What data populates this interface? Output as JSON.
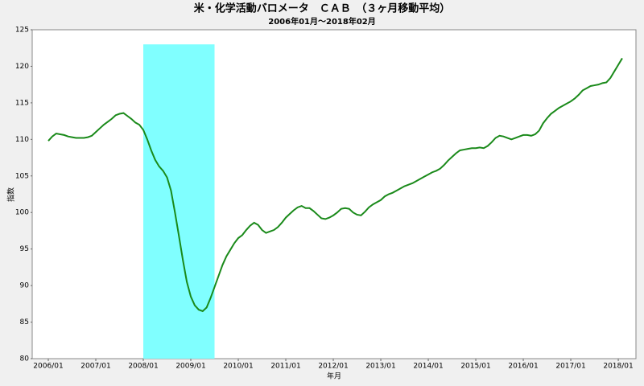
{
  "chart_data": {
    "type": "line",
    "title": "米・化学活動バロメータ　ＣＡＢ　（３ヶ月移動平均）",
    "subtitle": "2006年01月～2018年02月",
    "x_label": "年月",
    "y_label": "指数",
    "categories": [
      "2006/01",
      null,
      null,
      null,
      null,
      null,
      null,
      null,
      null,
      null,
      null,
      null,
      "2007/01",
      null,
      null,
      null,
      null,
      null,
      null,
      null,
      null,
      null,
      null,
      null,
      "2008/01",
      null,
      null,
      null,
      null,
      null,
      null,
      null,
      null,
      null,
      null,
      null,
      "2009/01",
      null,
      null,
      null,
      null,
      null,
      null,
      null,
      null,
      null,
      null,
      null,
      "2010/01",
      null,
      null,
      null,
      null,
      null,
      null,
      null,
      null,
      null,
      null,
      null,
      "2011/01",
      null,
      null,
      null,
      null,
      null,
      null,
      null,
      null,
      null,
      null,
      null,
      "2012/01",
      null,
      null,
      null,
      null,
      null,
      null,
      null,
      null,
      null,
      null,
      null,
      "2013/01",
      null,
      null,
      null,
      null,
      null,
      null,
      null,
      null,
      null,
      null,
      null,
      "2014/01",
      null,
      null,
      null,
      null,
      null,
      null,
      null,
      null,
      null,
      null,
      null,
      "2015/01",
      null,
      null,
      null,
      null,
      null,
      null,
      null,
      null,
      null,
      null,
      null,
      "2016/01",
      null,
      null,
      null,
      null,
      null,
      null,
      null,
      null,
      null,
      null,
      null,
      "2017/01",
      null,
      null,
      null,
      null,
      null,
      null,
      null,
      null,
      null,
      null,
      null,
      "2018/01",
      null
    ],
    "values": [
      109.8,
      110.4,
      110.8,
      110.7,
      110.6,
      110.4,
      110.3,
      110.2,
      110.2,
      110.2,
      110.3,
      110.5,
      111.0,
      111.5,
      112.0,
      112.4,
      112.8,
      113.3,
      113.5,
      113.6,
      113.2,
      112.8,
      112.3,
      112.0,
      111.3,
      110.0,
      108.5,
      107.2,
      106.3,
      105.7,
      104.8,
      103.0,
      100.0,
      96.8,
      93.5,
      90.5,
      88.5,
      87.3,
      86.7,
      86.5,
      87.0,
      88.3,
      89.8,
      91.3,
      92.8,
      94.0,
      94.9,
      95.8,
      96.5,
      96.9,
      97.6,
      98.2,
      98.6,
      98.3,
      97.6,
      97.2,
      97.4,
      97.6,
      98.0,
      98.6,
      99.3,
      99.8,
      100.3,
      100.7,
      100.9,
      100.6,
      100.6,
      100.2,
      99.7,
      99.2,
      99.1,
      99.3,
      99.6,
      100.0,
      100.5,
      100.6,
      100.5,
      100.0,
      99.7,
      99.6,
      100.1,
      100.7,
      101.1,
      101.4,
      101.7,
      102.2,
      102.5,
      102.7,
      103.0,
      103.3,
      103.6,
      103.8,
      104.0,
      104.3,
      104.6,
      104.9,
      105.2,
      105.5,
      105.7,
      106.0,
      106.5,
      107.1,
      107.6,
      108.1,
      108.5,
      108.6,
      108.7,
      108.8,
      108.8,
      108.9,
      108.8,
      109.1,
      109.6,
      110.2,
      110.5,
      110.4,
      110.2,
      110.0,
      110.2,
      110.4,
      110.6,
      110.6,
      110.5,
      110.7,
      111.2,
      112.2,
      112.9,
      113.5,
      113.9,
      114.3,
      114.6,
      114.9,
      115.2,
      115.6,
      116.1,
      116.7,
      117.0,
      117.3,
      117.4,
      117.5,
      117.7,
      117.8,
      118.4,
      119.3,
      120.2,
      121.1
    ],
    "color": "#1a8a1a",
    "highlight": {
      "x": [
        24,
        42
      ],
      "y": [
        80,
        123
      ],
      "color": "#80ffff"
    },
    "ylim": [
      80,
      125
    ],
    "yticks": [
      80,
      85,
      90,
      95,
      100,
      105,
      110,
      115,
      120,
      125
    ]
  }
}
